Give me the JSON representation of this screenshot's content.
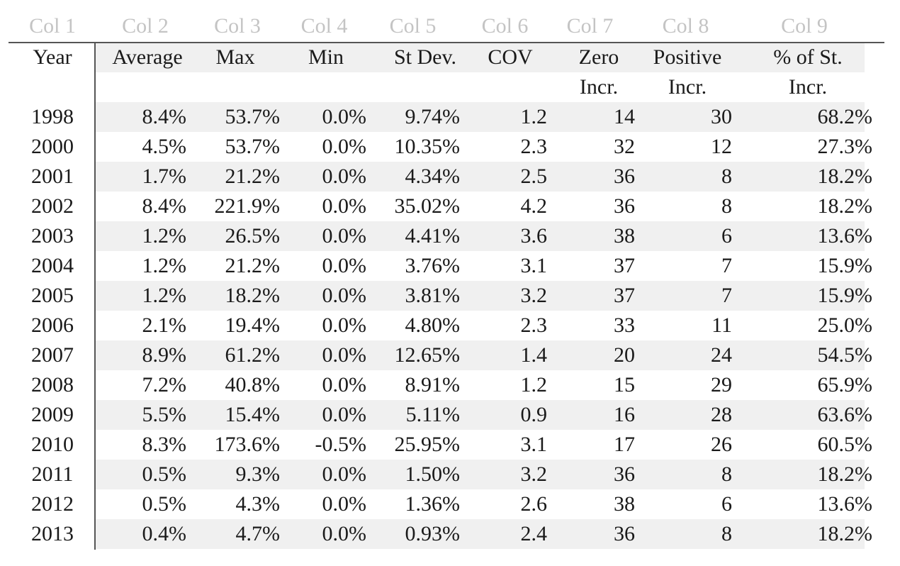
{
  "column_labels": [
    "Col 1",
    "Col 2",
    "Col 3",
    "Col 4",
    "Col 5",
    "Col 6",
    "Col 7",
    "Col 8",
    "Col 9"
  ],
  "headers": [
    [
      "Year",
      "Average",
      "Max",
      "Min",
      "St Dev.",
      "COV",
      "Zero",
      "Positive",
      "% of St."
    ],
    [
      "",
      "",
      "",
      "",
      "",
      "",
      "Incr.",
      "Incr.",
      "Incr."
    ]
  ],
  "rows": [
    [
      "1998",
      "8.4%",
      "53.7%",
      "0.0%",
      "9.74%",
      "1.2",
      "14",
      "30",
      "68.2%"
    ],
    [
      "2000",
      "4.5%",
      "53.7%",
      "0.0%",
      "10.35%",
      "2.3",
      "32",
      "12",
      "27.3%"
    ],
    [
      "2001",
      "1.7%",
      "21.2%",
      "0.0%",
      "4.34%",
      "2.5",
      "36",
      "8",
      "18.2%"
    ],
    [
      "2002",
      "8.4%",
      "221.9%",
      "0.0%",
      "35.02%",
      "4.2",
      "36",
      "8",
      "18.2%"
    ],
    [
      "2003",
      "1.2%",
      "26.5%",
      "0.0%",
      "4.41%",
      "3.6",
      "38",
      "6",
      "13.6%"
    ],
    [
      "2004",
      "1.2%",
      "21.2%",
      "0.0%",
      "3.76%",
      "3.1",
      "37",
      "7",
      "15.9%"
    ],
    [
      "2005",
      "1.2%",
      "18.2%",
      "0.0%",
      "3.81%",
      "3.2",
      "37",
      "7",
      "15.9%"
    ],
    [
      "2006",
      "2.1%",
      "19.4%",
      "0.0%",
      "4.80%",
      "2.3",
      "33",
      "11",
      "25.0%"
    ],
    [
      "2007",
      "8.9%",
      "61.2%",
      "0.0%",
      "12.65%",
      "1.4",
      "20",
      "24",
      "54.5%"
    ],
    [
      "2008",
      "7.2%",
      "40.8%",
      "0.0%",
      "8.91%",
      "1.2",
      "15",
      "29",
      "65.9%"
    ],
    [
      "2009",
      "5.5%",
      "15.4%",
      "0.0%",
      "5.11%",
      "0.9",
      "16",
      "28",
      "63.6%"
    ],
    [
      "2010",
      "8.3%",
      "173.6%",
      "-0.5%",
      "25.95%",
      "3.1",
      "17",
      "26",
      "60.5%"
    ],
    [
      "2011",
      "0.5%",
      "9.3%",
      "0.0%",
      "1.50%",
      "3.2",
      "36",
      "8",
      "18.2%"
    ],
    [
      "2012",
      "0.5%",
      "4.3%",
      "0.0%",
      "1.36%",
      "2.6",
      "38",
      "6",
      "13.6%"
    ],
    [
      "2013",
      "0.4%",
      "4.7%",
      "0.0%",
      "0.93%",
      "2.4",
      "36",
      "8",
      "18.2%"
    ]
  ]
}
